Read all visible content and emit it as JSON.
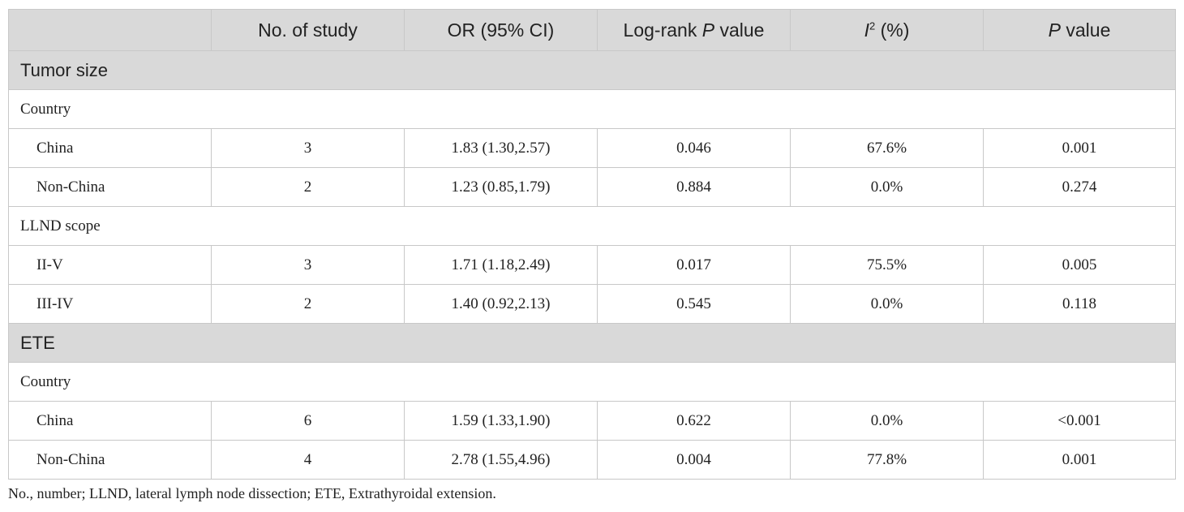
{
  "header": {
    "col0": "",
    "col1": "No. of study",
    "col2": "OR (95% CI)",
    "col3_prefix": "Log-rank ",
    "col3_italic": "P",
    "col3_suffix": " value",
    "col4_italic": "I",
    "col4_sup": "2",
    "col4_suffix": " (%)",
    "col5_italic": "P",
    "col5_suffix": " value"
  },
  "sections": [
    {
      "title": "Tumor size",
      "groups": [
        {
          "label": "Country",
          "rows": [
            {
              "label": "China",
              "n": "3",
              "or": "1.83 (1.30,2.57)",
              "logrank": "0.046",
              "i2": "67.6%",
              "p": "0.001"
            },
            {
              "label": "Non-China",
              "n": "2",
              "or": "1.23 (0.85,1.79)",
              "logrank": "0.884",
              "i2": "0.0%",
              "p": "0.274"
            }
          ]
        },
        {
          "label": "LLND scope",
          "rows": [
            {
              "label": "II-V",
              "n": "3",
              "or": "1.71 (1.18,2.49)",
              "logrank": "0.017",
              "i2": "75.5%",
              "p": "0.005"
            },
            {
              "label": "III-IV",
              "n": "2",
              "or": "1.40 (0.92,2.13)",
              "logrank": "0.545",
              "i2": "0.0%",
              "p": "0.118"
            }
          ]
        }
      ]
    },
    {
      "title": "ETE",
      "groups": [
        {
          "label": "Country",
          "rows": [
            {
              "label": "China",
              "n": "6",
              "or": "1.59 (1.33,1.90)",
              "logrank": "0.622",
              "i2": "0.0%",
              "p": "<0.001"
            },
            {
              "label": "Non-China",
              "n": "4",
              "or": "2.78 (1.55,4.96)",
              "logrank": "0.004",
              "i2": "77.8%",
              "p": "0.001"
            }
          ]
        }
      ]
    }
  ],
  "footnote": "No., number; LLND, lateral lymph node dissection; ETE, Extrathyroidal extension."
}
